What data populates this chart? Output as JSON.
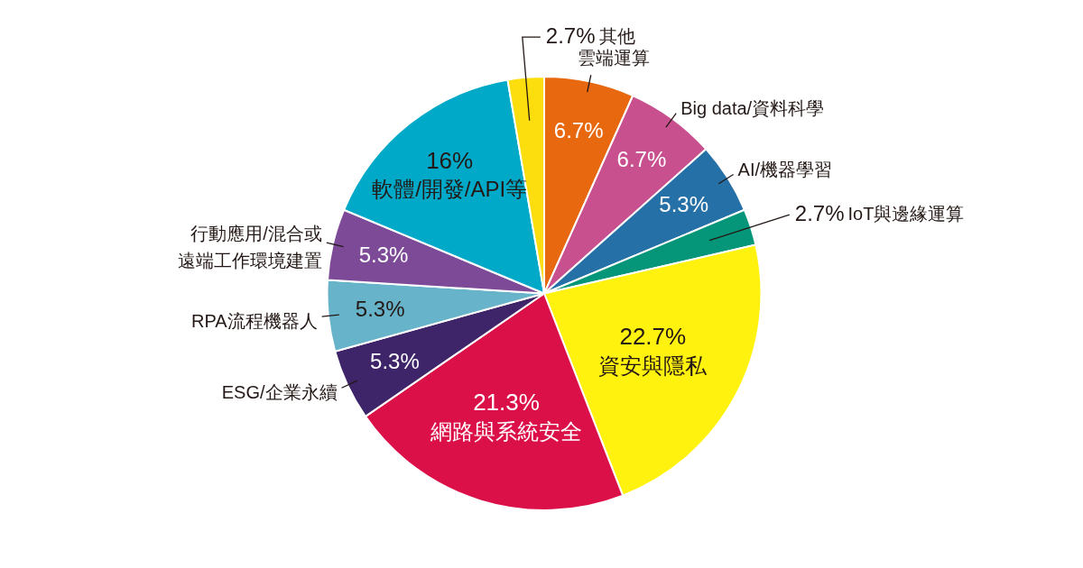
{
  "chart_data": {
    "type": "pie",
    "categories": [
      "雲端運算",
      "Big data/資料科學",
      "AI/機器學習",
      "IoT與邊緣運算",
      "資安與隱私",
      "網路與系統安全",
      "ESG/企業永續",
      "RPA流程機器人",
      "行動應用/混合或遠端工作環境建置",
      "軟體/開發/API等",
      "其他"
    ],
    "values": [
      6.7,
      6.7,
      5.3,
      2.7,
      22.7,
      21.3,
      5.3,
      5.3,
      5.3,
      16,
      2.7
    ],
    "colors": [
      "#e8680f",
      "#c8508f",
      "#2670a8",
      "#05967a",
      "#fff20f",
      "#dc1049",
      "#3e2468",
      "#67b3c9",
      "#7d4a98",
      "#00a9c7",
      "#fcdd0e"
    ],
    "value_labels": [
      "6.7%",
      "6.7%",
      "5.3%",
      "2.7%",
      "22.7%",
      "21.3%",
      "5.3%",
      "5.3%",
      "5.3%",
      "16%",
      "2.7%"
    ],
    "legend": false
  }
}
